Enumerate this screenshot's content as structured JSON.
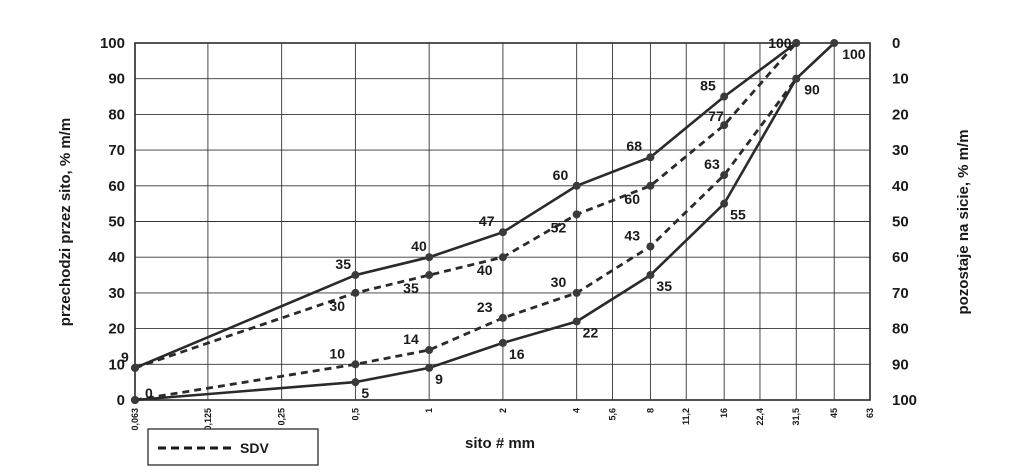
{
  "chart_data": {
    "type": "line",
    "xlabel": "sito # mm",
    "ylabel": "przechodzi przez sito, % m/m",
    "y2label": "pozostaje na sicie, % m/m",
    "x_ticks": [
      "0,063",
      "0,125",
      "0,25",
      "0,5",
      "1",
      "2",
      "4",
      "5,6",
      "8",
      "11,2",
      "16",
      "22,4",
      "31,5",
      "45",
      "63"
    ],
    "y_ticks": [
      0,
      10,
      20,
      30,
      40,
      50,
      60,
      70,
      80,
      90,
      100
    ],
    "y2_ticks": [
      100,
      90,
      80,
      70,
      60,
      50,
      40,
      30,
      20,
      10,
      0
    ],
    "ylim": [
      0,
      100
    ],
    "x_scale": "log",
    "grid": true,
    "legend": {
      "entries": [
        "SDV"
      ],
      "placement": "bottom-left"
    },
    "series": [
      {
        "style": "solid",
        "points": [
          [
            0.063,
            9
          ],
          [
            0.5,
            35
          ],
          [
            1,
            40
          ],
          [
            2,
            47
          ],
          [
            4,
            60
          ],
          [
            8,
            68
          ],
          [
            16,
            85
          ],
          [
            31.5,
            100
          ]
        ],
        "labels": [
          "9",
          "35",
          "40",
          "47",
          "60",
          "68",
          "85",
          "100"
        ]
      },
      {
        "style": "solid",
        "points": [
          [
            0.063,
            0
          ],
          [
            0.5,
            5
          ],
          [
            1,
            9
          ],
          [
            2,
            16
          ],
          [
            4,
            22
          ],
          [
            8,
            35
          ],
          [
            16,
            55
          ],
          [
            31.5,
            90
          ],
          [
            45,
            100
          ]
        ],
        "labels": [
          "0",
          "5",
          "9",
          "16",
          "22",
          "35",
          "55",
          "90",
          "100"
        ]
      },
      {
        "name": "SDV",
        "style": "dashed",
        "points": [
          [
            0.063,
            9
          ],
          [
            0.5,
            30
          ],
          [
            1,
            35
          ],
          [
            2,
            40
          ],
          [
            4,
            52
          ],
          [
            8,
            60
          ],
          [
            16,
            77
          ],
          [
            31.5,
            100
          ]
        ],
        "labels": [
          "",
          "30",
          "35",
          "40",
          "52",
          "60",
          "77",
          ""
        ]
      },
      {
        "name": "SDV",
        "style": "dashed",
        "points": [
          [
            0.063,
            0
          ],
          [
            0.5,
            10
          ],
          [
            1,
            14
          ],
          [
            2,
            23
          ],
          [
            4,
            30
          ],
          [
            8,
            43
          ],
          [
            16,
            63
          ],
          [
            31.5,
            90
          ]
        ],
        "labels": [
          "",
          "10",
          "14",
          "23",
          "30",
          "43",
          "63",
          ""
        ]
      }
    ]
  }
}
